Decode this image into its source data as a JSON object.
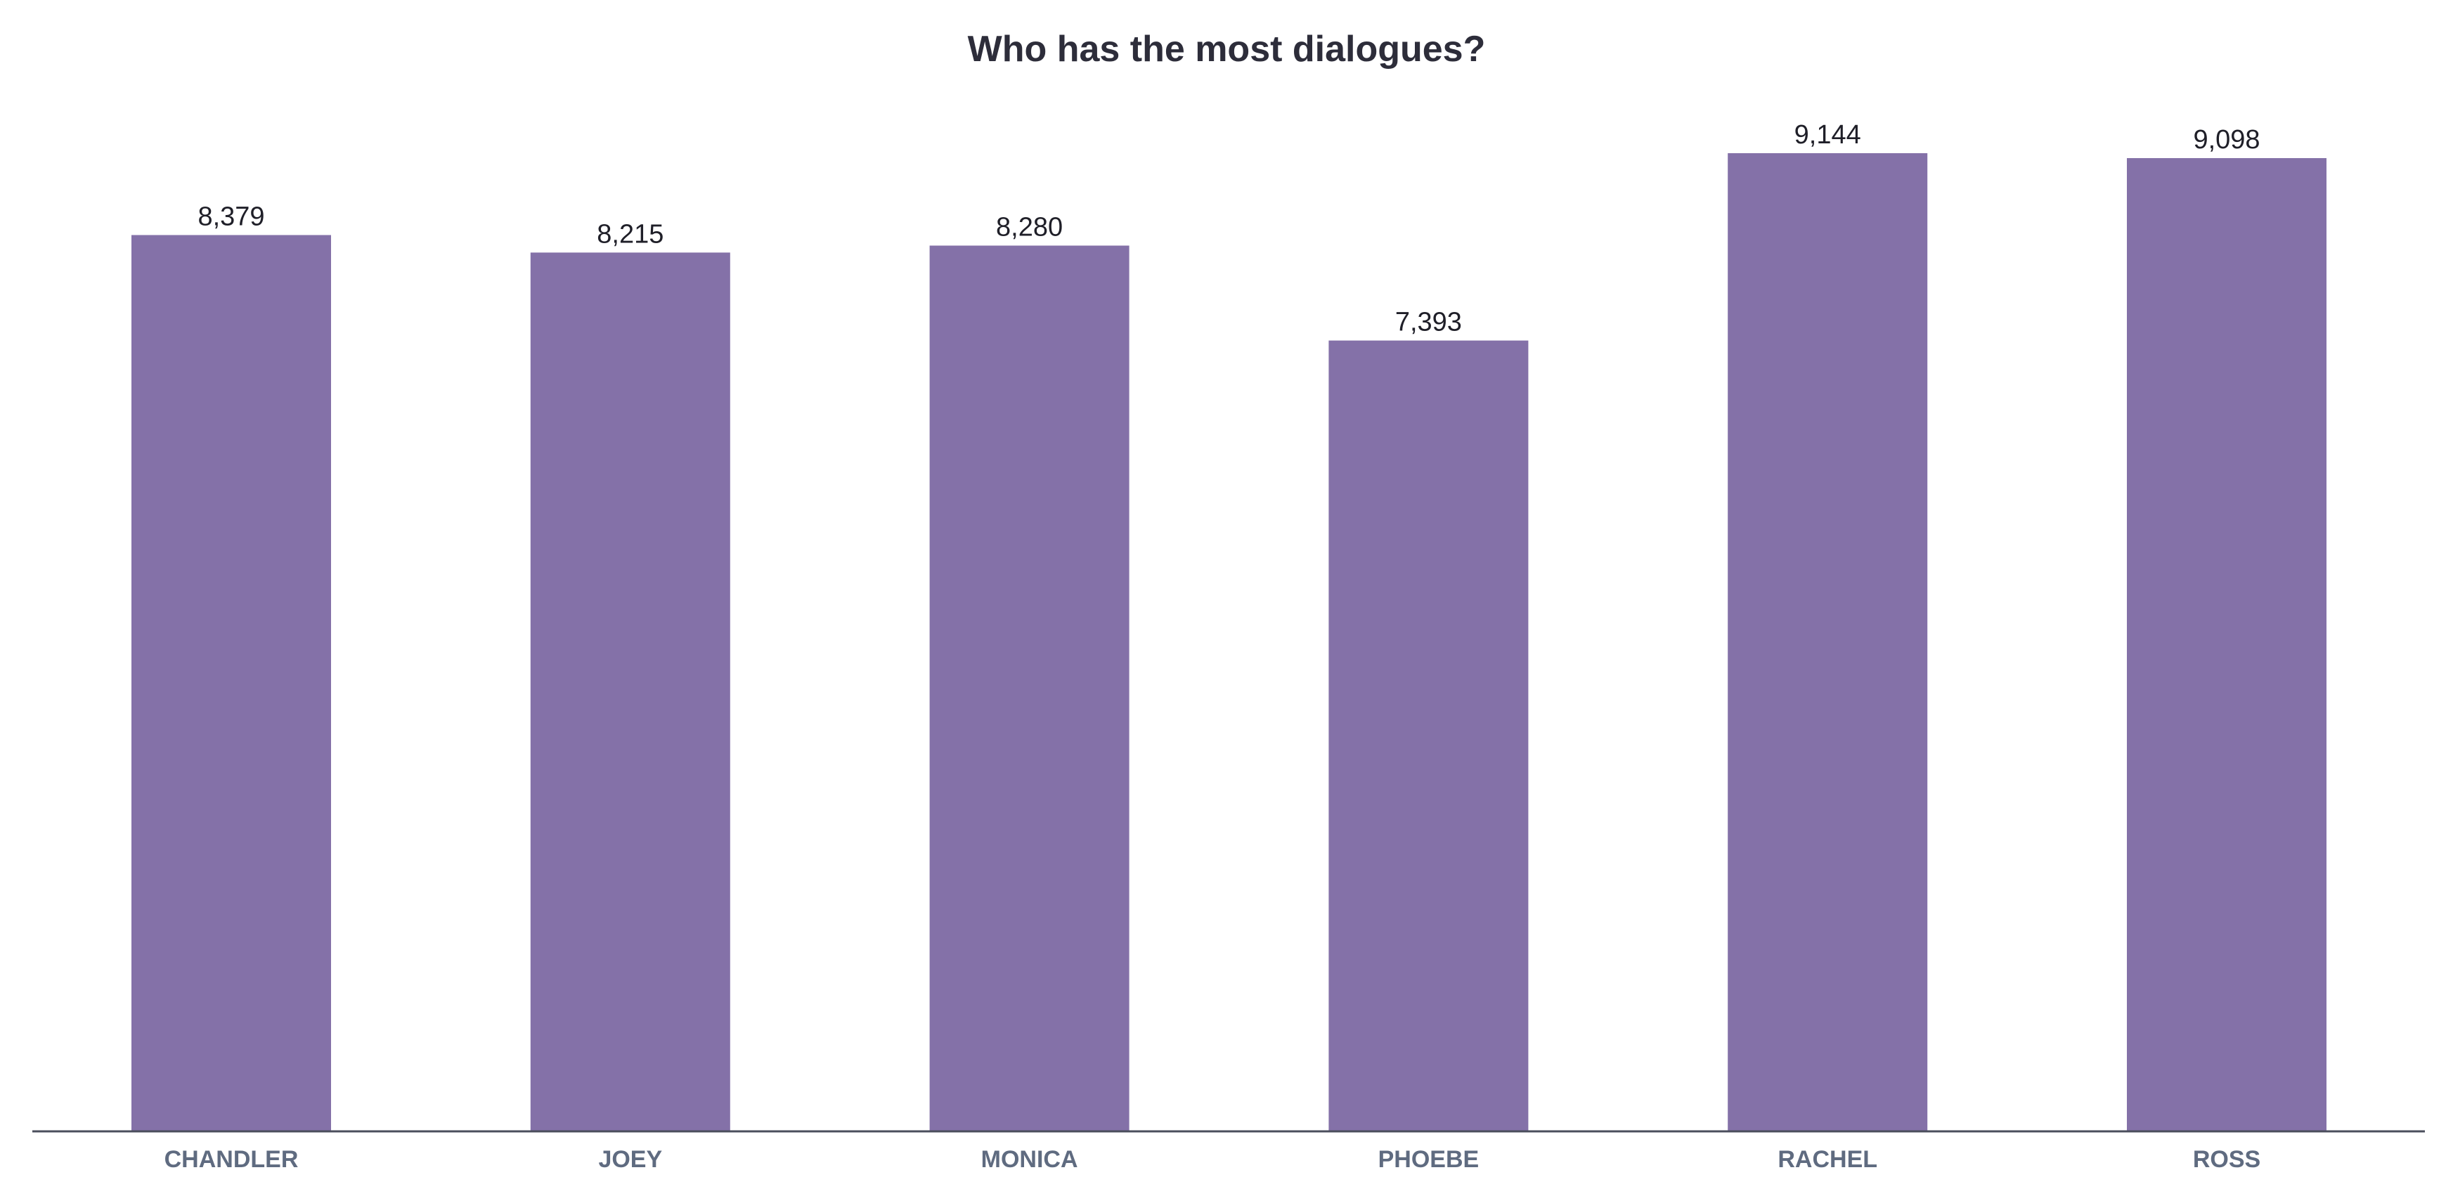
{
  "page": {
    "title": "Who has the most dialogues?"
  },
  "chart_data": {
    "type": "bar",
    "title": "Who has the most dialogues?",
    "xlabel": "",
    "ylabel": "",
    "categories": [
      "CHANDLER",
      "JOEY",
      "MONICA",
      "PHOEBE",
      "RACHEL",
      "ROSS"
    ],
    "values": [
      8379,
      8215,
      8280,
      7393,
      9144,
      9098
    ],
    "value_labels": [
      "8,379",
      "8,215",
      "8,280",
      "7,393",
      "9,144",
      "9,098"
    ],
    "ylim": [
      0,
      9144
    ],
    "grid": false,
    "legend": "none",
    "colors": {
      "bar": "#8471a8",
      "axis": "#4a4e5c",
      "value_label": "#1f1f28",
      "category_label": "#5f6b80",
      "title": "#2d2d3a"
    }
  }
}
